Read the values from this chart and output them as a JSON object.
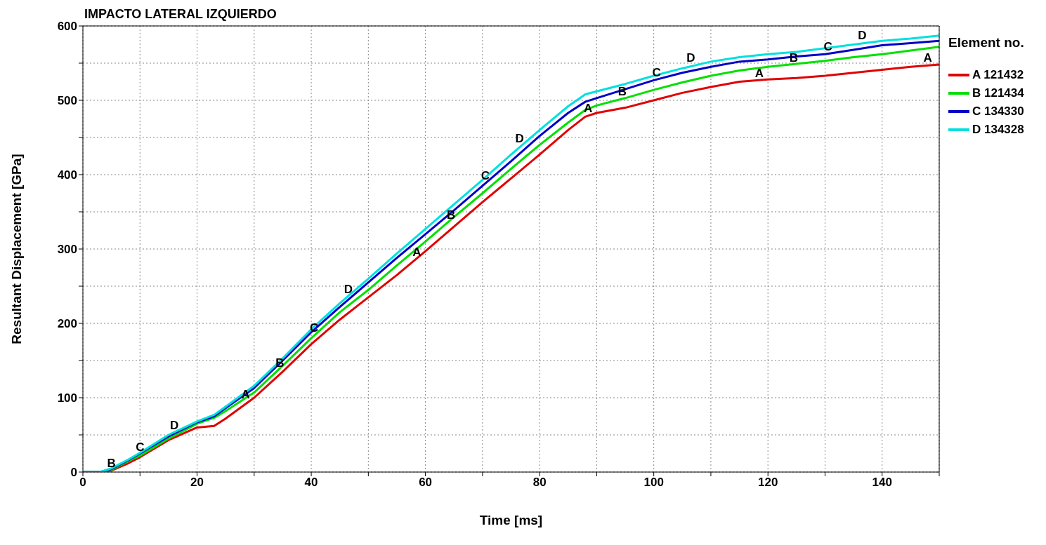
{
  "chart_data": {
    "type": "line",
    "title": "IMPACTO LATERAL IZQUIERDO",
    "xlabel": "Time [ms]",
    "ylabel": "Resultant Displacement [GPa]",
    "legend_title": "Element no.",
    "legend": "top right",
    "grid": true,
    "marker": "none",
    "line_style": "solid",
    "xlim": [
      0,
      150
    ],
    "xticks": [
      0,
      {
        "value": 10,
        "label": null
      },
      20,
      {
        "value": 30,
        "label": null
      },
      40,
      {
        "value": 50,
        "label": null
      },
      60,
      {
        "value": 70,
        "label": null
      },
      80,
      {
        "value": 90,
        "label": null
      },
      100,
      {
        "value": 110,
        "label": null
      },
      120,
      {
        "value": 130,
        "label": null
      },
      140,
      {
        "value": 150,
        "label": null
      }
    ],
    "ylim": [
      0,
      600
    ],
    "yticks": [
      0,
      {
        "value": 50,
        "label": null
      },
      100,
      {
        "value": 150,
        "label": null
      },
      200,
      {
        "value": 250,
        "label": null
      },
      300,
      {
        "value": 350,
        "label": null
      },
      400,
      {
        "value": 450,
        "label": null
      },
      500,
      {
        "value": 550,
        "label": null
      },
      600
    ],
    "x": [
      0,
      3,
      5,
      8,
      10,
      15,
      20,
      23,
      25,
      30,
      35,
      40,
      45,
      50,
      55,
      60,
      65,
      70,
      75,
      80,
      85,
      88,
      90,
      95,
      100,
      105,
      110,
      115,
      120,
      125,
      130,
      135,
      140,
      145,
      150
    ],
    "series": [
      {
        "name": "A 121432",
        "color": "#e00000",
        "values": [
          0,
          0,
          2,
          12,
          20,
          43,
          60,
          62,
          72,
          100,
          135,
          172,
          205,
          235,
          265,
          297,
          330,
          363,
          395,
          427,
          460,
          478,
          483,
          490,
          500,
          510,
          518,
          525,
          528,
          530,
          533,
          537,
          541,
          545,
          548
        ]
      },
      {
        "name": "B 121434",
        "color": "#00e000",
        "values": [
          0,
          0,
          3,
          15,
          22,
          45,
          65,
          73,
          82,
          107,
          143,
          180,
          215,
          245,
          278,
          310,
          343,
          375,
          408,
          440,
          470,
          487,
          493,
          503,
          514,
          524,
          533,
          540,
          545,
          549,
          553,
          558,
          562,
          567,
          572
        ]
      },
      {
        "name": "C 134330",
        "color": "#0000c8",
        "values": [
          0,
          0,
          4,
          16,
          25,
          48,
          67,
          75,
          86,
          113,
          150,
          188,
          222,
          255,
          288,
          320,
          352,
          385,
          418,
          452,
          483,
          498,
          503,
          515,
          527,
          537,
          545,
          552,
          555,
          559,
          562,
          568,
          574,
          577,
          580
        ]
      },
      {
        "name": "D 134328",
        "color": "#00e0e0",
        "values": [
          0,
          0,
          5,
          17,
          26,
          50,
          68,
          77,
          88,
          116,
          153,
          192,
          227,
          260,
          294,
          327,
          360,
          393,
          427,
          460,
          492,
          508,
          512,
          522,
          533,
          543,
          552,
          558,
          562,
          565,
          570,
          575,
          580,
          583,
          587
        ]
      }
    ],
    "annotations": [
      {
        "text": "B",
        "x": 5,
        "y": 3
      },
      {
        "text": "C",
        "x": 10,
        "y": 25
      },
      {
        "text": "D",
        "x": 16,
        "y": 54
      },
      {
        "text": "A",
        "x": 28.5,
        "y": 95
      },
      {
        "text": "B",
        "x": 34.5,
        "y": 138
      },
      {
        "text": "C",
        "x": 40.5,
        "y": 185
      },
      {
        "text": "D",
        "x": 46.5,
        "y": 237
      },
      {
        "text": "A",
        "x": 58.5,
        "y": 287
      },
      {
        "text": "B",
        "x": 64.5,
        "y": 337
      },
      {
        "text": "C",
        "x": 70.5,
        "y": 390
      },
      {
        "text": "D",
        "x": 76.5,
        "y": 440
      },
      {
        "text": "A",
        "x": 88.5,
        "y": 480
      },
      {
        "text": "B",
        "x": 94.5,
        "y": 503
      },
      {
        "text": "C",
        "x": 100.5,
        "y": 528
      },
      {
        "text": "D",
        "x": 106.5,
        "y": 548
      },
      {
        "text": "A",
        "x": 118.5,
        "y": 527
      },
      {
        "text": "B",
        "x": 124.5,
        "y": 548
      },
      {
        "text": "C",
        "x": 130.5,
        "y": 563
      },
      {
        "text": "D",
        "x": 136.5,
        "y": 578
      },
      {
        "text": "A",
        "x": 148,
        "y": 548
      }
    ]
  }
}
